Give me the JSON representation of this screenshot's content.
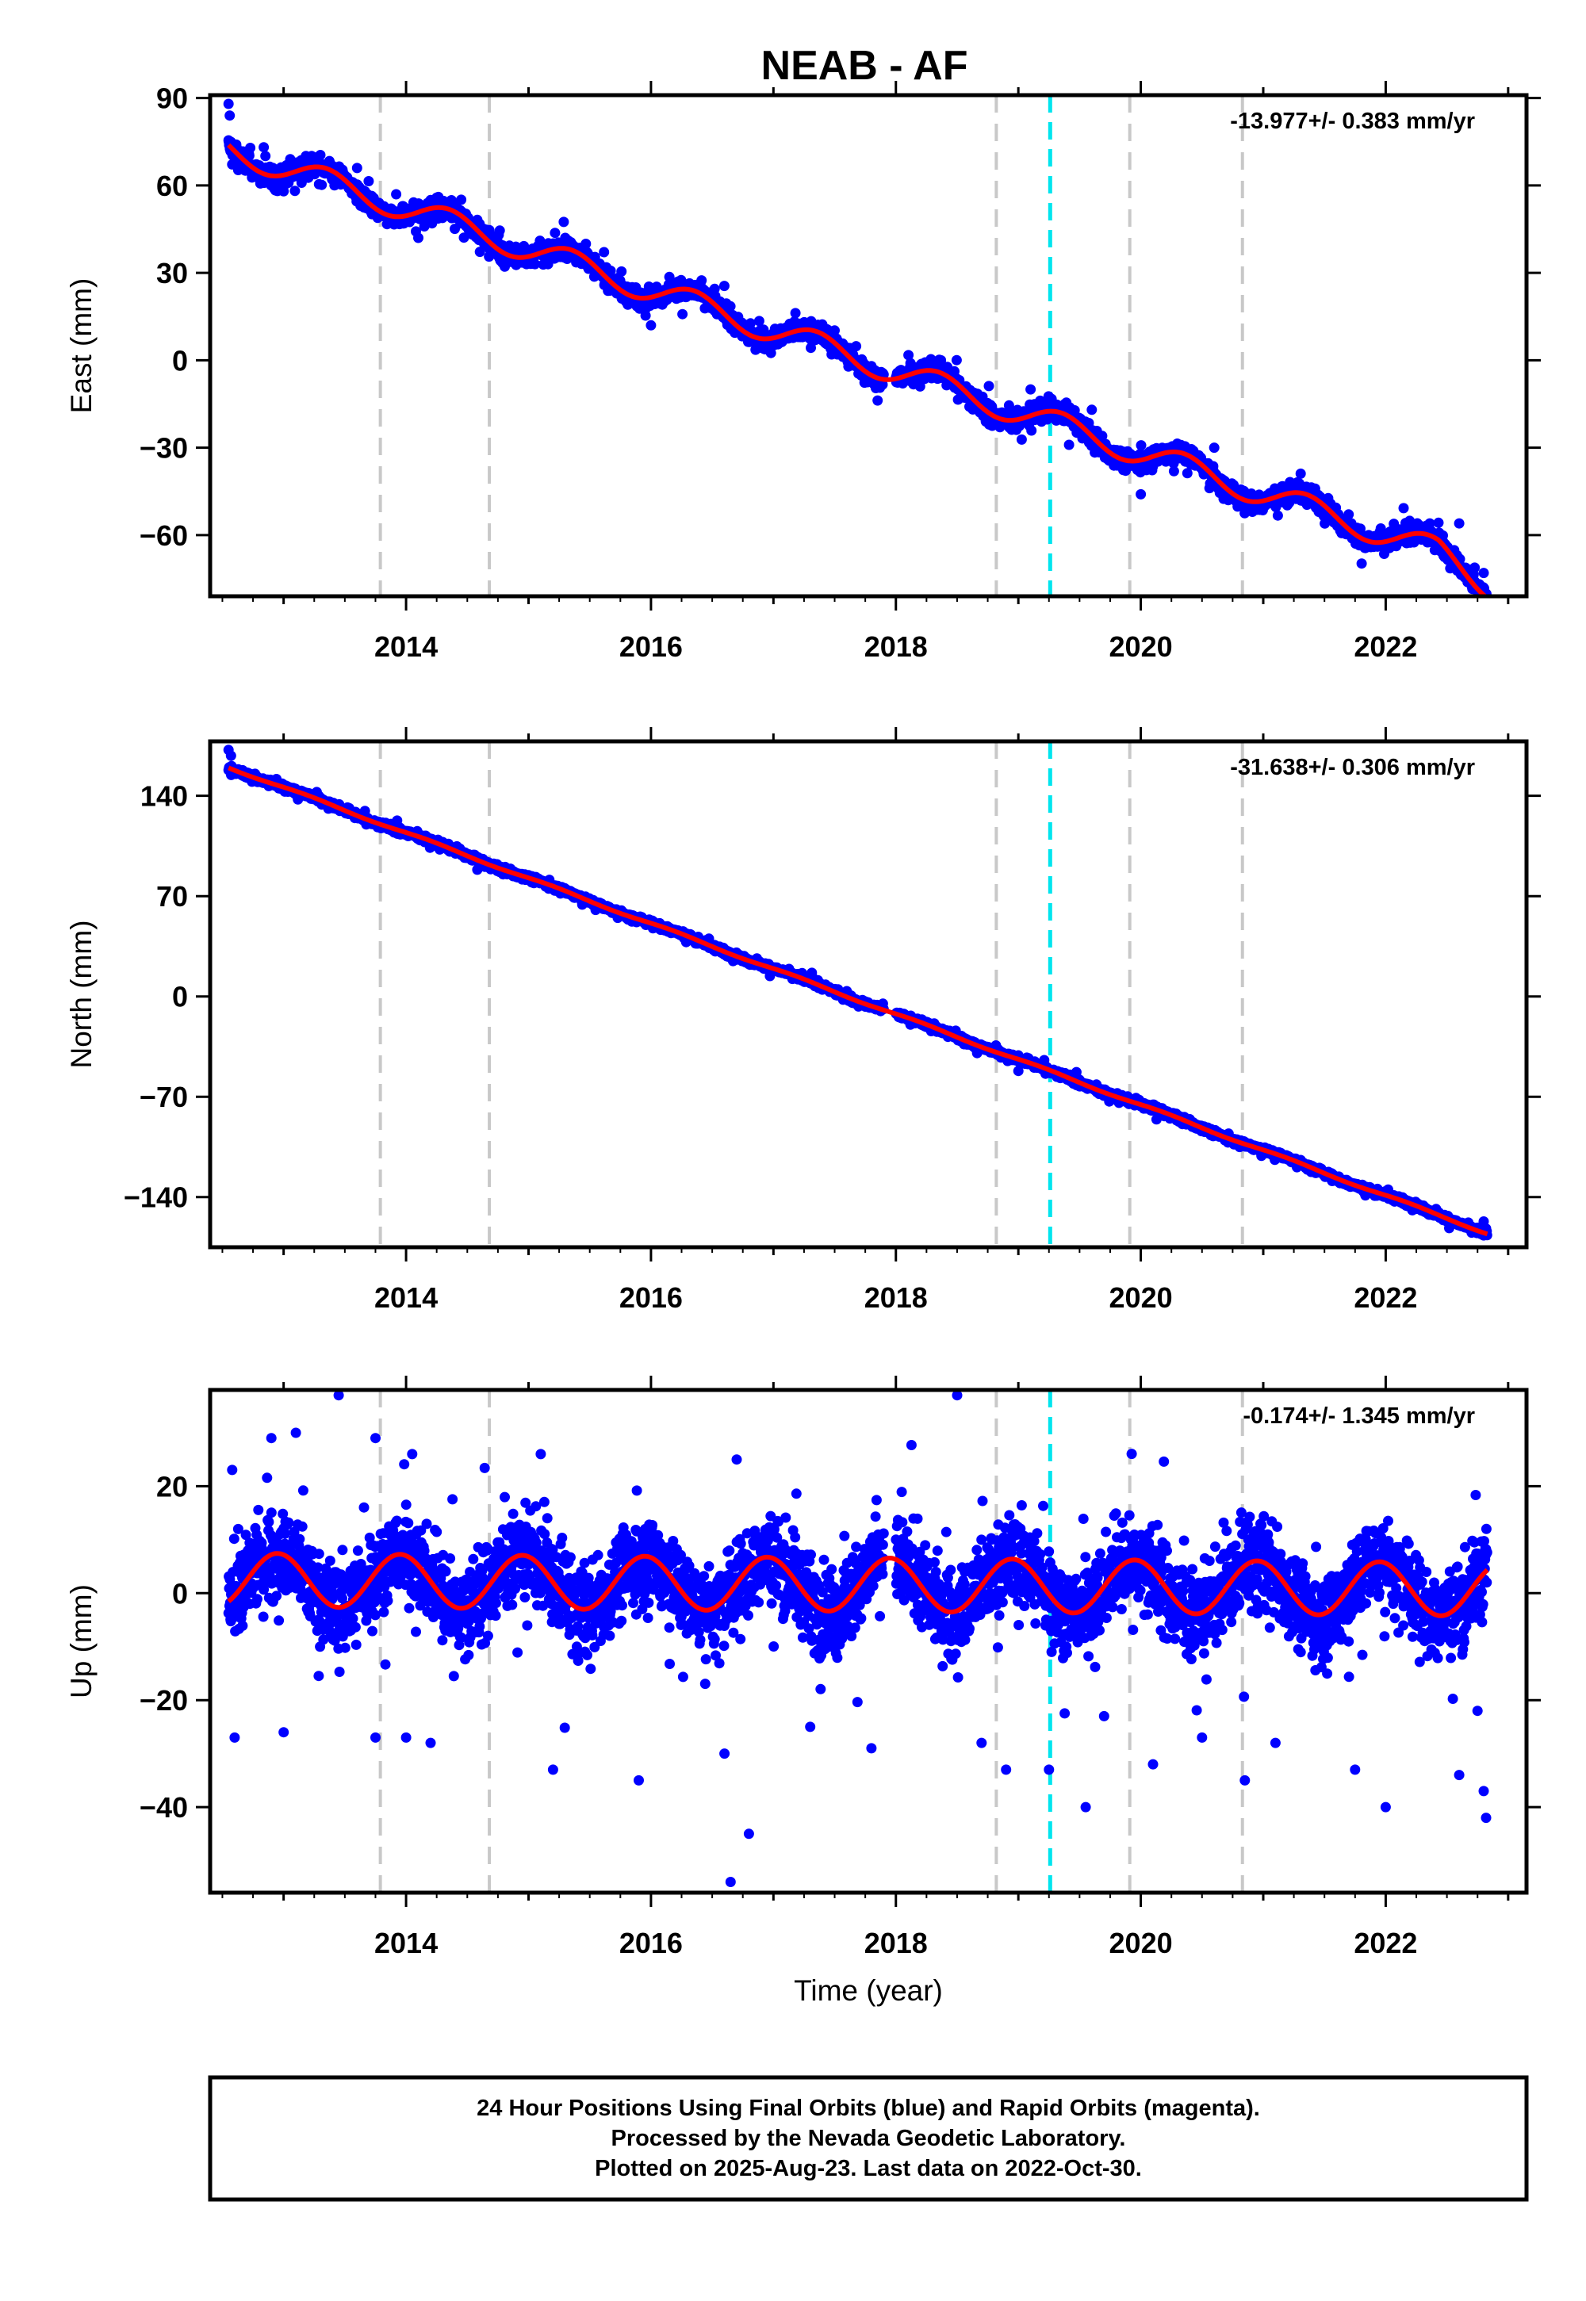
{
  "title": "NEAB - AF",
  "colors": {
    "final_orbits": "#0000ff",
    "model": "#ff0000",
    "event_line": "#c8c8c8",
    "antenna_change": "#00e5ee"
  },
  "footer": {
    "line1": "24 Hour Positions Using Final Orbits (blue) and Rapid Orbits (magenta).",
    "line2": "Processed by the Nevada Geodetic Laboratory.",
    "line3": "Plotted on 2025-Aug-23. Last data on 2022-Oct-30."
  },
  "chart_data": [
    {
      "type": "scatter",
      "component": "East",
      "ylabel": "East (mm)",
      "xlabel": "",
      "rate_text": "-13.977+/- 0.383 mm/yr",
      "xlim": [
        2012.4,
        2023.15
      ],
      "ylim": [
        -81,
        91
      ],
      "xticks": [
        2014,
        2016,
        2018,
        2020,
        2022
      ],
      "yticks": [
        -60,
        -30,
        0,
        30,
        60,
        90
      ],
      "ytick_labels": [
        "−60",
        "−30",
        "0",
        "30",
        "60",
        "90"
      ],
      "event_lines": [
        2013.79,
        2014.68,
        2018.82,
        2019.91,
        2020.83
      ],
      "antenna_line": 2019.26,
      "model": {
        "start": 2012.55,
        "end": 2022.83,
        "offset_at_start": 72.5,
        "rate": -13.977,
        "annual_amplitude": 4.5,
        "annual_phase": 0.35,
        "end_drop": -6
      },
      "scatter_noise_mm": 2.6,
      "points": [
        [
          2012.55,
          88
        ],
        [
          2012.56,
          84
        ],
        [
          2013.6,
          66
        ],
        [
          2013.0,
          58
        ],
        [
          2014.1,
          42
        ],
        [
          2014.2,
          55
        ],
        [
          2015.3,
          42
        ],
        [
          2016.0,
          12
        ],
        [
          2017.2,
          8
        ],
        [
          2017.8,
          -2
        ],
        [
          2018.4,
          -3
        ],
        [
          2019.1,
          -10
        ],
        [
          2019.6,
          -17
        ],
        [
          2020.0,
          -46
        ],
        [
          2020.6,
          -30
        ],
        [
          2021.1,
          -50
        ],
        [
          2021.7,
          -58
        ],
        [
          2022.3,
          -59
        ],
        [
          2022.6,
          -56
        ],
        [
          2022.8,
          -73
        ]
      ]
    },
    {
      "type": "scatter",
      "component": "North",
      "ylabel": "North (mm)",
      "xlabel": "",
      "rate_text": "-31.638+/- 0.306 mm/yr",
      "xlim": [
        2012.4,
        2023.15
      ],
      "ylim": [
        -175,
        178
      ],
      "xticks": [
        2014,
        2016,
        2018,
        2020,
        2022
      ],
      "yticks": [
        -140,
        -70,
        0,
        70,
        140
      ],
      "ytick_labels": [
        "−140",
        "−70",
        "0",
        "70",
        "140"
      ],
      "event_lines": [
        2013.79,
        2014.68,
        2018.82,
        2019.91,
        2020.83
      ],
      "antenna_line": 2019.26,
      "model": {
        "start": 2012.55,
        "end": 2022.83,
        "offset_at_start": 160,
        "rate": -31.638,
        "annual_amplitude": 0.8,
        "annual_phase": 0.2,
        "end_drop": 0
      },
      "scatter_noise_mm": 1.8,
      "points": [
        [
          2012.55,
          172
        ],
        [
          2012.57,
          168
        ],
        [
          2018.8,
          -37
        ],
        [
          2019.0,
          -52
        ],
        [
          2022.8,
          -157
        ],
        [
          2022.82,
          -162
        ]
      ]
    },
    {
      "type": "scatter",
      "component": "Up",
      "ylabel": "Up (mm)",
      "xlabel": "Time (year)",
      "rate_text": "-0.174+/- 1.345 mm/yr",
      "xlim": [
        2012.4,
        2023.15
      ],
      "ylim": [
        -56,
        38
      ],
      "xticks": [
        2014,
        2016,
        2018,
        2020,
        2022
      ],
      "yticks": [
        -40,
        -20,
        0,
        20
      ],
      "ytick_labels": [
        "−40",
        "−20",
        "0",
        "20"
      ],
      "event_lines": [
        2013.79,
        2014.68,
        2018.82,
        2019.91,
        2020.83
      ],
      "antenna_line": 2019.26,
      "model": {
        "start": 2012.55,
        "end": 2022.83,
        "offset_at_start": 2.5,
        "rate": -0.174,
        "annual_amplitude": 5.0,
        "annual_phase": -0.05,
        "end_drop": 0
      },
      "scatter_noise_mm": 6.5,
      "points": [
        [
          2013.45,
          37
        ],
        [
          2018.5,
          37
        ],
        [
          2013.1,
          30
        ],
        [
          2012.9,
          29
        ],
        [
          2013.75,
          29
        ],
        [
          2016.7,
          25
        ],
        [
          2015.1,
          26
        ],
        [
          2014.05,
          26
        ],
        [
          2012.6,
          -27
        ],
        [
          2013.0,
          -26
        ],
        [
          2013.75,
          -27
        ],
        [
          2014.0,
          -27
        ],
        [
          2014.2,
          -28
        ],
        [
          2015.2,
          -33
        ],
        [
          2015.9,
          -35
        ],
        [
          2016.6,
          -30
        ],
        [
          2016.8,
          -45
        ],
        [
          2016.65,
          -54
        ],
        [
          2017.3,
          -25
        ],
        [
          2017.8,
          -29
        ],
        [
          2018.7,
          -28
        ],
        [
          2018.9,
          -33
        ],
        [
          2019.25,
          -33
        ],
        [
          2019.55,
          -40
        ],
        [
          2019.7,
          -23
        ],
        [
          2020.1,
          -32
        ],
        [
          2020.5,
          -27
        ],
        [
          2020.85,
          -35
        ],
        [
          2021.1,
          -28
        ],
        [
          2021.75,
          -33
        ],
        [
          2022.0,
          -40
        ],
        [
          2022.6,
          -34
        ],
        [
          2022.82,
          -42
        ],
        [
          2022.8,
          -37
        ],
        [
          2022.75,
          -22
        ]
      ]
    }
  ]
}
